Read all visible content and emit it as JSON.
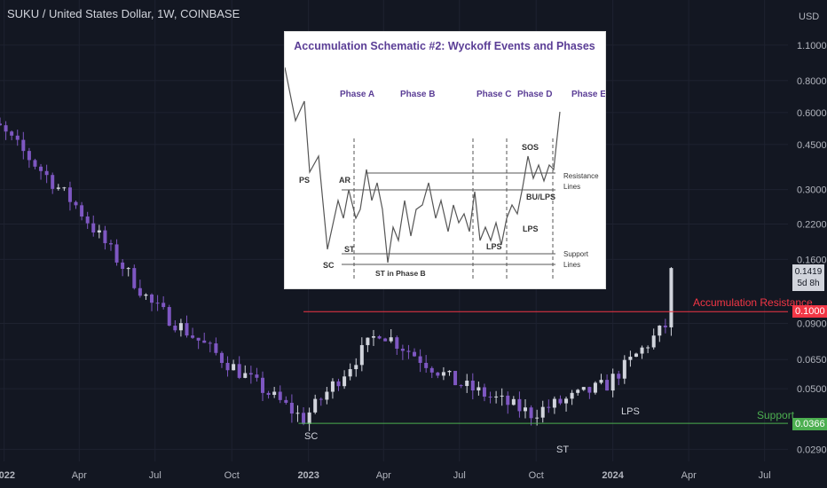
{
  "header": {
    "title": "SUKU / United States Dollar, 1W, COINBASE"
  },
  "axis": {
    "currency": "USD",
    "y_ticks": [
      "1.1000",
      "0.8000",
      "0.6000",
      "0.4500",
      "0.3000",
      "0.2200",
      "0.1600",
      "0.0900",
      "0.0650",
      "0.0500",
      "0.0290"
    ],
    "x_ticks": [
      "2022",
      "Apr",
      "Jul",
      "Oct",
      "2023",
      "Apr",
      "Jul",
      "Oct",
      "2024",
      "Apr",
      "Jul"
    ]
  },
  "price_tag": {
    "value": "0.1419",
    "countdown": "5d 8h"
  },
  "levels": {
    "resistance": {
      "label": "Accumulation Resistance",
      "value": "0.1000",
      "color": "#f23645"
    },
    "support": {
      "label": "Support",
      "value": "0.0366",
      "color": "#4caf50"
    }
  },
  "annotations": {
    "sc": "SC",
    "st": "ST",
    "lps": "LPS"
  },
  "inset": {
    "title": "Accumulation Schematic #2: Wyckoff Events and Phases",
    "phases": [
      "Phase A",
      "Phase B",
      "Phase C",
      "Phase D",
      "Phase E"
    ],
    "events": {
      "ps": "PS",
      "ar": "AR",
      "st": "ST",
      "sc": "SC",
      "st_b": "ST in Phase B",
      "lps1": "LPS",
      "lps2": "LPS",
      "sos": "SOS",
      "bu": "BU/LPS"
    },
    "resistance_label": "Resistance",
    "support_label": "Support",
    "lines_label": "Lines"
  },
  "colors": {
    "bull": "#d1d4dc",
    "bear": "#7e57c2",
    "background": "#131722"
  },
  "chart_data": {
    "type": "candlestick",
    "title": "SUKU / United States Dollar, 1W, COINBASE",
    "ylabel": "USD",
    "scale": "log",
    "ylim": [
      0.026,
      1.3
    ],
    "xlim": [
      "2021-12-27",
      "2024-07-29"
    ],
    "x": [
      "2021-12-27",
      "2022-03-28",
      "2022-06-27",
      "2022-09-26",
      "2022-12-26",
      "2023-03-27",
      "2023-06-26",
      "2023-09-25",
      "2023-12-25",
      "2024-03-04",
      "2024-03-11"
    ],
    "close": [
      0.52,
      0.26,
      0.107,
      0.063,
      0.038,
      0.084,
      0.053,
      0.04,
      0.052,
      0.088,
      0.142
    ],
    "resistance": 0.1,
    "support": 0.0366
  }
}
